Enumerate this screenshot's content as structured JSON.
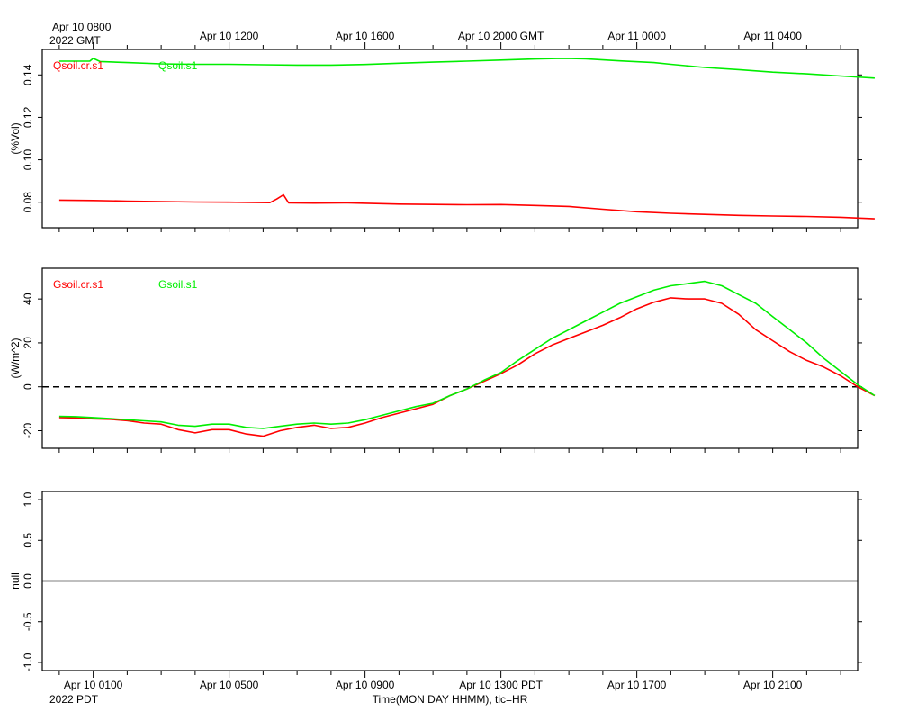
{
  "top_axis": {
    "labels": [
      "Apr 10 0800",
      "Apr 10 1200",
      "Apr 10 1600",
      "Apr 10 2000 GMT",
      "Apr 11 0000",
      "Apr 11 0400"
    ],
    "year_label": "2022 GMT"
  },
  "bottom_axis": {
    "labels": [
      "Apr 10 0100",
      "Apr 10 0500",
      "Apr 10 0900",
      "Apr 10 1300 PDT",
      "Apr 10 1700",
      "Apr 10 2100"
    ],
    "year_label": "2022 PDT",
    "xlabel": "Time(MON DAY HHMM), tic=HR"
  },
  "chart_data": [
    {
      "type": "line",
      "ylabel": "(%Vol)",
      "x_units": "hours since Apr 10 0000 PDT",
      "xlim": [
        0,
        24.0
      ],
      "ylim": [
        0.068,
        0.152
      ],
      "yticks": [
        0.08,
        0.1,
        0.12,
        0.14
      ],
      "ytick_labels": [
        "0.08",
        "0.10",
        "0.12",
        "0.14"
      ],
      "series": [
        {
          "name": "Qsoil.cr.s1",
          "color": "#ff0000",
          "points": [
            [
              0,
              0.081
            ],
            [
              1,
              0.0808
            ],
            [
              2,
              0.0805
            ],
            [
              3,
              0.0803
            ],
            [
              4,
              0.0801
            ],
            [
              5,
              0.08
            ],
            [
              5.6,
              0.0799
            ],
            [
              6.2,
              0.0798
            ],
            [
              6.4,
              0.0815
            ],
            [
              6.6,
              0.0835
            ],
            [
              6.75,
              0.0797
            ],
            [
              7.5,
              0.0796
            ],
            [
              8.5,
              0.0797
            ],
            [
              10,
              0.0791
            ],
            [
              12,
              0.0788
            ],
            [
              13,
              0.0789
            ],
            [
              14,
              0.0785
            ],
            [
              15,
              0.078
            ],
            [
              16,
              0.0767
            ],
            [
              17,
              0.0755
            ],
            [
              18,
              0.0748
            ],
            [
              19,
              0.0743
            ],
            [
              20,
              0.0738
            ],
            [
              21,
              0.0735
            ],
            [
              22,
              0.0733
            ],
            [
              23,
              0.0729
            ],
            [
              24,
              0.0722
            ]
          ]
        },
        {
          "name": "Qsoil.s1",
          "color": "#00ee00",
          "points": [
            [
              0,
              0.1465
            ],
            [
              0.9,
              0.1465
            ],
            [
              1.0,
              0.1478
            ],
            [
              1.2,
              0.1463
            ],
            [
              2,
              0.1458
            ],
            [
              3,
              0.1452
            ],
            [
              4,
              0.145
            ],
            [
              5,
              0.145
            ],
            [
              6,
              0.1448
            ],
            [
              7,
              0.1446
            ],
            [
              8,
              0.1446
            ],
            [
              9,
              0.1449
            ],
            [
              10,
              0.1455
            ],
            [
              11,
              0.146
            ],
            [
              12,
              0.1465
            ],
            [
              13,
              0.147
            ],
            [
              14,
              0.1475
            ],
            [
              14.8,
              0.1478
            ],
            [
              15.5,
              0.1476
            ],
            [
              16.5,
              0.1466
            ],
            [
              17.5,
              0.1458
            ],
            [
              18,
              0.145
            ],
            [
              19,
              0.1435
            ],
            [
              20,
              0.1425
            ],
            [
              21,
              0.1413
            ],
            [
              22,
              0.1405
            ],
            [
              23,
              0.1395
            ],
            [
              24,
              0.1385
            ]
          ]
        }
      ]
    },
    {
      "type": "line",
      "ylabel": "(W/m^2)",
      "x_units": "hours since Apr 10 0000 PDT",
      "xlim": [
        0,
        24.0
      ],
      "ylim": [
        -28,
        54
      ],
      "yticks": [
        -20,
        0,
        20,
        40
      ],
      "ytick_labels": [
        "-20",
        "0",
        "20",
        "40"
      ],
      "reference_line": 0,
      "series": [
        {
          "name": "Gsoil.cr.s1",
          "color": "#ff0000",
          "points": [
            [
              0,
              -14
            ],
            [
              0.5,
              -14.2
            ],
            [
              1,
              -14.6
            ],
            [
              1.5,
              -14.8
            ],
            [
              2,
              -15.4
            ],
            [
              2.5,
              -16.5
            ],
            [
              3,
              -17
            ],
            [
              3.5,
              -19.5
            ],
            [
              4,
              -21
            ],
            [
              4.5,
              -19.5
            ],
            [
              5,
              -19.5
            ],
            [
              5.5,
              -21.5
            ],
            [
              6,
              -22.5
            ],
            [
              6.5,
              -20
            ],
            [
              7,
              -18.5
            ],
            [
              7.5,
              -17.5
            ],
            [
              8,
              -19
            ],
            [
              8.5,
              -18.5
            ],
            [
              9,
              -16.5
            ],
            [
              9.5,
              -14
            ],
            [
              10,
              -12
            ],
            [
              10.5,
              -10
            ],
            [
              11,
              -8
            ],
            [
              11.5,
              -4
            ],
            [
              12,
              -1
            ],
            [
              12.5,
              2.5
            ],
            [
              13,
              6
            ],
            [
              13.5,
              10
            ],
            [
              14,
              15
            ],
            [
              14.5,
              19
            ],
            [
              15,
              22
            ],
            [
              15.5,
              25
            ],
            [
              16,
              28
            ],
            [
              16.5,
              31.5
            ],
            [
              17,
              35.5
            ],
            [
              17.5,
              38.5
            ],
            [
              18,
              40.5
            ],
            [
              18.5,
              40
            ],
            [
              19,
              40
            ],
            [
              19.5,
              38
            ],
            [
              20,
              33
            ],
            [
              20.5,
              26
            ],
            [
              21,
              21
            ],
            [
              21.5,
              16
            ],
            [
              22,
              12
            ],
            [
              22.5,
              9
            ],
            [
              23,
              5
            ],
            [
              23.5,
              0
            ],
            [
              24,
              -4
            ]
          ]
        },
        {
          "name": "Gsoil.s1",
          "color": "#00ee00",
          "points": [
            [
              0,
              -13.5
            ],
            [
              0.5,
              -13.6
            ],
            [
              1,
              -14
            ],
            [
              1.5,
              -14.5
            ],
            [
              2,
              -15
            ],
            [
              2.5,
              -15.5
            ],
            [
              3,
              -16
            ],
            [
              3.5,
              -17.5
            ],
            [
              4,
              -18
            ],
            [
              4.5,
              -17
            ],
            [
              5,
              -17
            ],
            [
              5.5,
              -18.5
            ],
            [
              6,
              -19
            ],
            [
              6.5,
              -18
            ],
            [
              7,
              -17
            ],
            [
              7.5,
              -16.5
            ],
            [
              8,
              -17
            ],
            [
              8.5,
              -16.5
            ],
            [
              9,
              -15
            ],
            [
              9.5,
              -13
            ],
            [
              10,
              -11
            ],
            [
              10.5,
              -9
            ],
            [
              11,
              -7.5
            ],
            [
              11.5,
              -4
            ],
            [
              12,
              -1
            ],
            [
              12.5,
              3
            ],
            [
              13,
              6.5
            ],
            [
              13.5,
              12
            ],
            [
              14,
              17
            ],
            [
              14.5,
              22
            ],
            [
              15,
              26
            ],
            [
              15.5,
              30
            ],
            [
              16,
              34
            ],
            [
              16.5,
              38
            ],
            [
              17,
              41
            ],
            [
              17.5,
              44
            ],
            [
              18,
              46
            ],
            [
              18.5,
              47
            ],
            [
              19,
              48
            ],
            [
              19.5,
              46
            ],
            [
              20,
              42
            ],
            [
              20.5,
              38
            ],
            [
              21,
              32
            ],
            [
              21.5,
              26
            ],
            [
              22,
              20
            ],
            [
              22.5,
              13
            ],
            [
              23,
              7
            ],
            [
              23.5,
              1
            ],
            [
              24,
              -4
            ]
          ]
        }
      ]
    },
    {
      "type": "line",
      "ylabel": "null",
      "xlim": [
        0,
        24.0
      ],
      "ylim": [
        -1.1,
        1.1
      ],
      "yticks": [
        -1.0,
        -0.5,
        0.0,
        0.5,
        1.0
      ],
      "ytick_labels": [
        "-1.0",
        "-0.5",
        "0.0",
        "0.5",
        "1.0"
      ],
      "reference_line": 0,
      "series": []
    }
  ]
}
